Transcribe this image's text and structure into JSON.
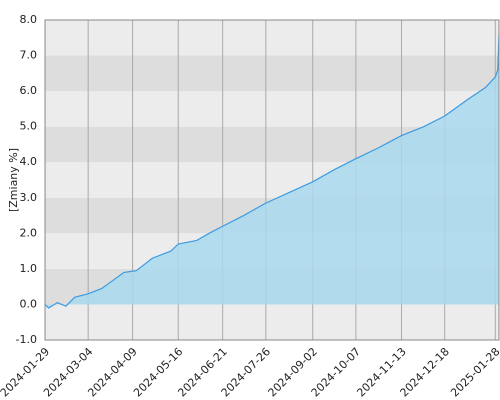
{
  "chart_data": {
    "type": "area",
    "y_label": "[Zmiany %]",
    "x": [
      "2024-01-29",
      "2024-02-01",
      "2024-02-08",
      "2024-02-15",
      "2024-02-22",
      "2024-03-04",
      "2024-03-15",
      "2024-03-25",
      "2024-04-02",
      "2024-04-12",
      "2024-04-25",
      "2024-05-10",
      "2024-05-16",
      "2024-05-31",
      "2024-06-10",
      "2024-06-21",
      "2024-07-08",
      "2024-07-26",
      "2024-08-14",
      "2024-09-02",
      "2024-09-20",
      "2024-10-07",
      "2024-10-25",
      "2024-11-13",
      "2024-12-01",
      "2024-12-18",
      "2025-01-05",
      "2025-01-20",
      "2025-01-28",
      "2025-01-30",
      "2025-01-31"
    ],
    "series": [
      {
        "color": "#3d9be0",
        "fill": "#a9d9ee",
        "values": [
          0.0,
          -0.1,
          0.05,
          -0.05,
          0.2,
          0.3,
          0.45,
          0.7,
          0.9,
          0.95,
          1.3,
          1.5,
          1.7,
          1.8,
          2.0,
          2.2,
          2.5,
          2.85,
          3.15,
          3.45,
          3.8,
          4.1,
          4.4,
          4.75,
          5.0,
          5.3,
          5.75,
          6.1,
          6.4,
          6.6,
          7.6
        ]
      }
    ],
    "xlim": [
      "2024-01-29",
      "2025-01-31"
    ],
    "xticks": [
      "2024-01-29",
      "2024-03-04",
      "2024-04-09",
      "2024-05-16",
      "2024-06-21",
      "2024-07-26",
      "2024-09-02",
      "2024-10-07",
      "2024-11-13",
      "2024-12-18",
      "2025-01-28"
    ],
    "ylim": [
      -1,
      8
    ],
    "yticks": [
      {
        "value": -1,
        "label": "-1.0"
      },
      {
        "value": 0,
        "label": "0.0"
      },
      {
        "value": 1,
        "label": "1.0"
      },
      {
        "value": 2,
        "label": "2.0"
      },
      {
        "value": 3,
        "label": "3.0"
      },
      {
        "value": 4,
        "label": "4.0"
      },
      {
        "value": 5,
        "label": "5.0"
      },
      {
        "value": 6,
        "label": "6.0"
      },
      {
        "value": 7,
        "label": "7.0"
      },
      {
        "value": 8,
        "label": "8.0"
      }
    ],
    "grid": true
  }
}
